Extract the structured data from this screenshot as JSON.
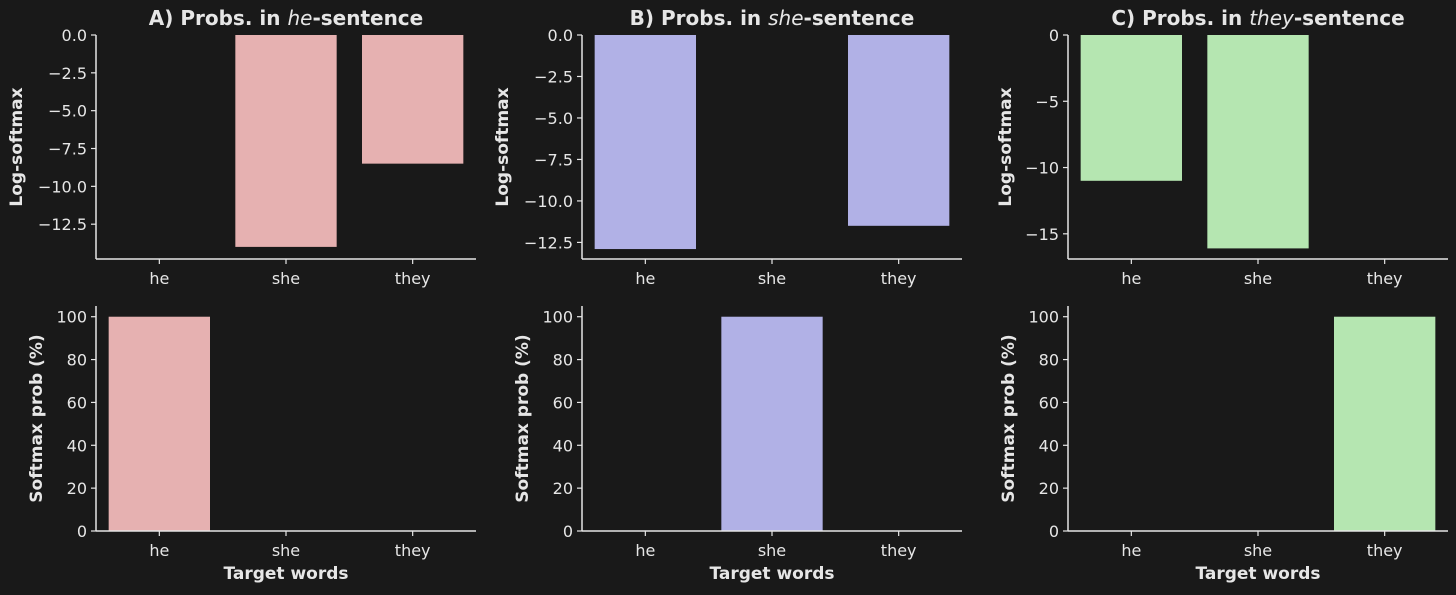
{
  "chart_data": [
    {
      "id": "A-log",
      "type": "bar",
      "title_prefix": "A) Probs. in ",
      "title_italic": "he",
      "title_suffix": "-sentence",
      "xlabel": "",
      "ylabel": "Log-softmax",
      "categories": [
        "he",
        "she",
        "they"
      ],
      "values": [
        0.0,
        -14.0,
        -8.5
      ],
      "ylim": [
        -14.8,
        0
      ],
      "yticks": [
        0.0,
        -2.5,
        -5.0,
        -7.5,
        -10.0,
        -12.5
      ],
      "ytick_labels": [
        "0.0",
        "−2.5",
        "−5.0",
        "−7.5",
        "−10.0",
        "−12.5"
      ],
      "color": "#e6b1b1"
    },
    {
      "id": "B-log",
      "type": "bar",
      "title_prefix": "B) Probs. in ",
      "title_italic": "she",
      "title_suffix": "-sentence",
      "xlabel": "",
      "ylabel": "Log-softmax",
      "categories": [
        "he",
        "she",
        "they"
      ],
      "values": [
        -12.9,
        0.0,
        -11.5
      ],
      "ylim": [
        -13.5,
        0
      ],
      "yticks": [
        0.0,
        -2.5,
        -5.0,
        -7.5,
        -10.0,
        -12.5
      ],
      "ytick_labels": [
        "0.0",
        "−2.5",
        "−5.0",
        "−7.5",
        "−10.0",
        "−12.5"
      ],
      "color": "#b1b1e6"
    },
    {
      "id": "C-log",
      "type": "bar",
      "title_prefix": "C) Probs. in ",
      "title_italic": "they",
      "title_suffix": "-sentence",
      "xlabel": "",
      "ylabel": "Log-softmax",
      "categories": [
        "he",
        "she",
        "they"
      ],
      "values": [
        -11.0,
        -16.1,
        0.0
      ],
      "ylim": [
        -16.9,
        0
      ],
      "yticks": [
        0,
        -5,
        -10,
        -15
      ],
      "ytick_labels": [
        "0",
        "−5",
        "−10",
        "−15"
      ],
      "color": "#b5e6b1"
    },
    {
      "id": "A-prob",
      "type": "bar",
      "xlabel": "Target words",
      "ylabel": "Softmax prob (%)",
      "categories": [
        "he",
        "she",
        "they"
      ],
      "values": [
        100,
        0,
        0
      ],
      "ylim": [
        0,
        105
      ],
      "yticks": [
        0,
        20,
        40,
        60,
        80,
        100
      ],
      "ytick_labels": [
        "0",
        "20",
        "40",
        "60",
        "80",
        "100"
      ],
      "color": "#e6b1b1"
    },
    {
      "id": "B-prob",
      "type": "bar",
      "xlabel": "Target words",
      "ylabel": "Softmax prob (%)",
      "categories": [
        "he",
        "she",
        "they"
      ],
      "values": [
        0,
        100,
        0
      ],
      "ylim": [
        0,
        105
      ],
      "yticks": [
        0,
        20,
        40,
        60,
        80,
        100
      ],
      "ytick_labels": [
        "0",
        "20",
        "40",
        "60",
        "80",
        "100"
      ],
      "color": "#b1b1e6"
    },
    {
      "id": "C-prob",
      "type": "bar",
      "xlabel": "Target words",
      "ylabel": "Softmax prob (%)",
      "categories": [
        "he",
        "she",
        "they"
      ],
      "values": [
        0,
        0,
        100
      ],
      "ylim": [
        0,
        105
      ],
      "yticks": [
        0,
        20,
        40,
        60,
        80,
        100
      ],
      "ytick_labels": [
        "0",
        "20",
        "40",
        "60",
        "80",
        "100"
      ],
      "color": "#b5e6b1"
    }
  ]
}
